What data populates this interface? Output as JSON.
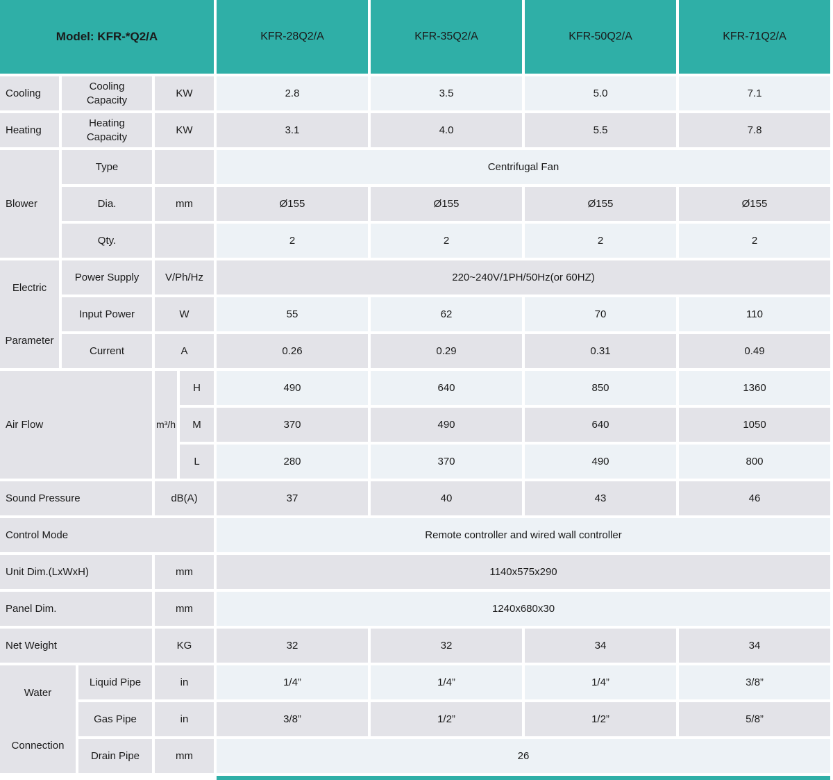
{
  "colors": {
    "accent": "#2FAFA7",
    "cell_light": "#EDF2F6",
    "cell_gray": "#E3E3E8",
    "text": "#1a1a1a"
  },
  "header": {
    "model_label": "Model: KFR-*Q2/A",
    "columns": [
      "KFR-28Q2/A",
      "KFR-35Q2/A",
      "KFR-50Q2/A",
      "KFR-71Q2/A"
    ]
  },
  "rows": {
    "cooling": {
      "group": "Cooling",
      "sub": "Cooling Capacity",
      "unit": "KW",
      "values": [
        "2.8",
        "3.5",
        "5.0",
        "7.1"
      ]
    },
    "heating": {
      "group": "Heating",
      "sub": "Heating Capacity",
      "unit": "KW",
      "values": [
        "3.1",
        "4.0",
        "5.5",
        "7.8"
      ]
    },
    "blower": {
      "group": "Blower",
      "type": {
        "sub": "Type",
        "unit": "",
        "value": "Centrifugal Fan"
      },
      "dia": {
        "sub": "Dia.",
        "unit": "mm",
        "values": [
          "Ø155",
          "Ø155",
          "Ø155",
          "Ø155"
        ]
      },
      "qty": {
        "sub": "Qty.",
        "unit": "",
        "values": [
          "2",
          "2",
          "2",
          "2"
        ]
      }
    },
    "electric": {
      "group_line1": "Electric",
      "group_line2": "Parameter",
      "power_supply": {
        "sub": "Power Supply",
        "unit": "V/Ph/Hz",
        "value": "220~240V/1PH/50Hz(or 60HZ)"
      },
      "input_power": {
        "sub": "Input Power",
        "unit": "W",
        "values": [
          "55",
          "62",
          "70",
          "110"
        ]
      },
      "current": {
        "sub": "Current",
        "unit": "A",
        "values": [
          "0.26",
          "0.29",
          "0.31",
          "0.49"
        ]
      }
    },
    "air_flow": {
      "group": "Air Flow",
      "unit": "m³/h",
      "high": {
        "sub": "H",
        "values": [
          "490",
          "640",
          "850",
          "1360"
        ]
      },
      "mid": {
        "sub": "M",
        "values": [
          "370",
          "490",
          "640",
          "1050"
        ]
      },
      "low": {
        "sub": "L",
        "values": [
          "280",
          "370",
          "490",
          "800"
        ]
      }
    },
    "sound_pressure": {
      "group": "Sound Pressure",
      "unit": "dB(A)",
      "values": [
        "37",
        "40",
        "43",
        "46"
      ]
    },
    "control_mode": {
      "group": "Control Mode",
      "value": "Remote controller and wired wall controller"
    },
    "unit_dim": {
      "group": "Unit Dim.(LxWxH)",
      "unit": "mm",
      "value": "1140x575x290"
    },
    "panel_dim": {
      "group": "Panel Dim.",
      "unit": "mm",
      "value": "1240x680x30"
    },
    "net_weight": {
      "group": "Net Weight",
      "unit": "KG",
      "values": [
        "32",
        "32",
        "34",
        "34"
      ]
    },
    "water": {
      "group_line1": "Water",
      "group_line2": "Connection",
      "liquid": {
        "sub": "Liquid Pipe",
        "unit": "in",
        "values": [
          "1/4”",
          "1/4”",
          "1/4”",
          "3/8”"
        ]
      },
      "gas": {
        "sub": "Gas Pipe",
        "unit": "in",
        "values": [
          "3/8”",
          "1/2”",
          "1/2”",
          "5/8”"
        ]
      },
      "drain": {
        "sub": "Drain Pipe",
        "unit": "mm",
        "value": "26"
      }
    }
  }
}
